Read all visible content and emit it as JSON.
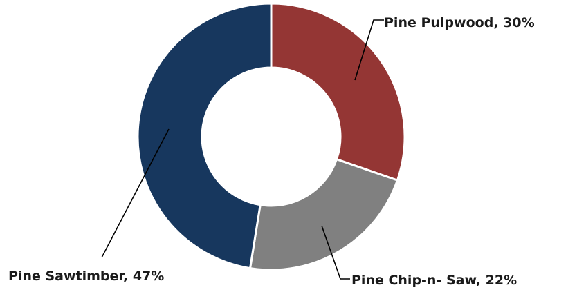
{
  "chart_data": {
    "type": "pie",
    "variant": "donut",
    "title": "",
    "slices": [
      {
        "label": "Pine Pulpwood",
        "value": 30,
        "color": "#943634"
      },
      {
        "label": "Pine Chip-n- Saw",
        "value": 22,
        "color": "#808080"
      },
      {
        "label": "Pine Sawtimber",
        "value": 47,
        "color": "#17375e"
      }
    ],
    "data_labels": [
      {
        "text": "Pine Pulpwood, 30%"
      },
      {
        "text": "Pine Chip-n- Saw, 22%"
      },
      {
        "text": "Pine Sawtimber, 47%"
      }
    ],
    "legend": "none",
    "start_angle": "12 o'clock",
    "direction": "clockwise"
  }
}
